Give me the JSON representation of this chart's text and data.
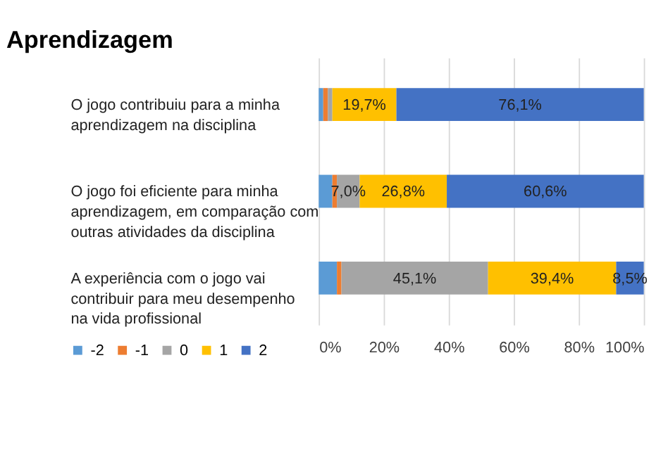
{
  "chart_data": {
    "type": "bar",
    "orientation": "horizontal",
    "stacked": true,
    "title": "Aprendizagem",
    "categories": [
      "O jogo contribuiu para a minha aprendizagem na disciplina",
      "O jogo foi eficiente para minha aprendizagem, em comparação com outras atividades da disciplina",
      "A experiência com o jogo vai contribuir para meu desempenho na vida profissional"
    ],
    "series": [
      {
        "name": "-2",
        "color": "#5b9bd5",
        "values": [
          1.4,
          4.2,
          5.6
        ],
        "value_labels": [
          null,
          null,
          null
        ]
      },
      {
        "name": "-1",
        "color": "#ed7d31",
        "values": [
          1.4,
          1.4,
          1.4
        ],
        "value_labels": [
          null,
          null,
          null
        ]
      },
      {
        "name": "0",
        "color": "#a5a5a5",
        "values": [
          1.4,
          7.0,
          45.1
        ],
        "value_labels": [
          null,
          "7,0%",
          "45,1%"
        ]
      },
      {
        "name": "1",
        "color": "#ffc000",
        "values": [
          19.7,
          26.8,
          39.4
        ],
        "value_labels": [
          "19,7%",
          "26,8%",
          "39,4%"
        ]
      },
      {
        "name": "2",
        "color": "#4472c4",
        "values": [
          76.1,
          60.6,
          8.5
        ],
        "value_labels": [
          "76,1%",
          "60,6%",
          "8,5%"
        ]
      }
    ],
    "xlim": [
      0,
      100
    ],
    "xticks": [
      {
        "value": 0,
        "label": "0%"
      },
      {
        "value": 20,
        "label": "20%"
      },
      {
        "value": 40,
        "label": "40%"
      },
      {
        "value": 60,
        "label": "60%"
      },
      {
        "value": 80,
        "label": "80%"
      },
      {
        "value": 100,
        "label": "100%"
      }
    ],
    "grid": "x",
    "legend": "bottom left"
  }
}
